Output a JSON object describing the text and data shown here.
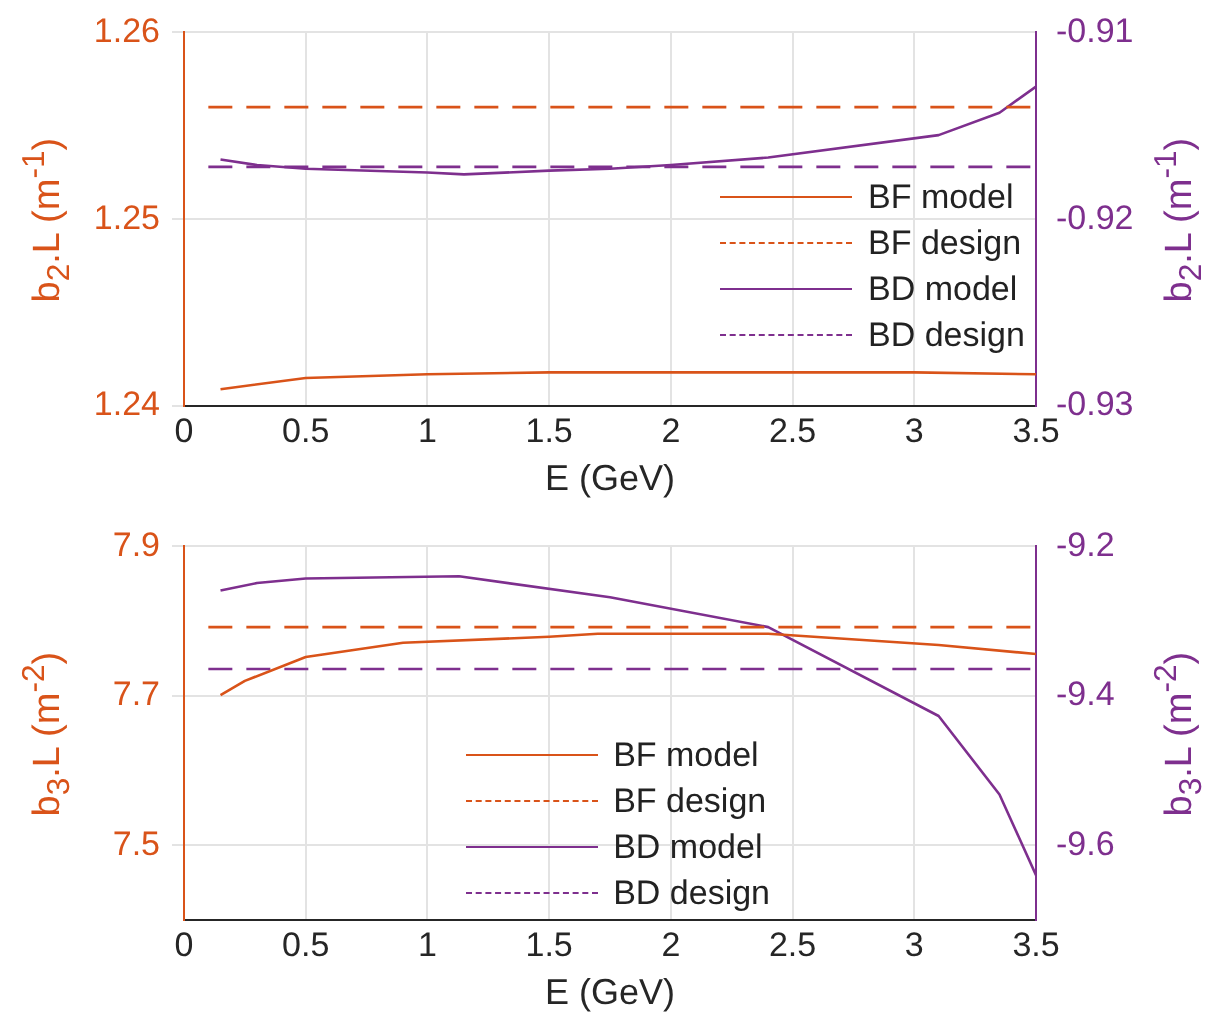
{
  "chart_data": [
    {
      "type": "line",
      "xlabel": "E (GeV)",
      "ylabel": "b$_{2}$.L (m$^{-1}$)",
      "y2label": "b$_{2}$.L (m$^{-1}$)",
      "xlim": [
        0,
        3.5
      ],
      "xticks": [
        0,
        0.5,
        1,
        1.5,
        2,
        2.5,
        3,
        3.5
      ],
      "ylim": [
        1.24,
        1.26
      ],
      "yticks": [
        1.24,
        1.25,
        1.26
      ],
      "y2lim": [
        -0.93,
        -0.91
      ],
      "y2ticks": [
        -0.93,
        -0.92,
        -0.91
      ],
      "grid": true,
      "legend": "right",
      "marker": "none",
      "series": [
        {
          "name": "BF model",
          "color": "#d95319",
          "line_style": "solid",
          "x": [
            0.15,
            0.5,
            1.0,
            1.5,
            2.0,
            2.5,
            3.0,
            3.5
          ],
          "values": [
            1.2409,
            1.2415,
            1.2417,
            1.2418,
            1.2418,
            1.2418,
            1.2418,
            1.2417
          ]
        },
        {
          "name": "BF design",
          "color": "#d95319",
          "line_style": "dashed",
          "x": [
            0.1,
            3.5
          ],
          "values": [
            1.256,
            1.256
          ]
        },
        {
          "name": "BD model",
          "color": "#7e2f8e",
          "line_style": "solid",
          "axis": "y2",
          "x": [
            0.15,
            0.3,
            0.5,
            1.0,
            1.15,
            1.5,
            1.75,
            2.0,
            2.4,
            3.1,
            3.35,
            3.5
          ],
          "values": [
            -0.9168,
            -0.9171,
            -0.9173,
            -0.9175,
            -0.9176,
            -0.9174,
            -0.9173,
            -0.9171,
            -0.9167,
            -0.9155,
            -0.9143,
            -0.9129
          ]
        },
        {
          "name": "BD design",
          "color": "#7e2f8e",
          "line_style": "dashed",
          "axis": "y2",
          "x": [
            0.1,
            3.5
          ],
          "values": [
            -0.9172,
            -0.9172
          ]
        }
      ]
    },
    {
      "type": "line",
      "xlabel": "E (GeV)",
      "ylabel": "b$_{3}$.L (m$^{-2}$)",
      "y2label": "b$_{3}$.L (m$^{-2}$)",
      "xlim": [
        0,
        3.5
      ],
      "xticks": [
        0,
        0.5,
        1,
        1.5,
        2,
        2.5,
        3,
        3.5
      ],
      "ylim": [
        7.4,
        7.9
      ],
      "yticks": [
        7.5,
        7.7,
        7.9
      ],
      "y2lim": [
        -9.7,
        -9.2
      ],
      "y2ticks": [
        -9.6,
        -9.4,
        -9.2
      ],
      "grid": true,
      "legend": "bottom",
      "marker": "none",
      "series": [
        {
          "name": "BF model",
          "color": "#d95319",
          "line_style": "solid",
          "x": [
            0.15,
            0.25,
            0.5,
            0.9,
            1.5,
            1.7,
            2.4,
            3.1,
            3.5
          ],
          "values": [
            7.701,
            7.72,
            7.752,
            7.771,
            7.779,
            7.783,
            7.783,
            7.768,
            7.756
          ]
        },
        {
          "name": "BF design",
          "color": "#d95319",
          "line_style": "dashed",
          "x": [
            0.1,
            3.5
          ],
          "values": [
            7.792,
            7.792
          ]
        },
        {
          "name": "BD model",
          "color": "#7e2f8e",
          "line_style": "solid",
          "axis": "y2",
          "x": [
            0.15,
            0.3,
            0.5,
            1.13,
            1.75,
            2.4,
            3.1,
            3.35,
            3.5
          ],
          "values": [
            -9.259,
            -9.249,
            -9.243,
            -9.24,
            -9.268,
            -9.308,
            -9.427,
            -9.532,
            -9.64
          ]
        },
        {
          "name": "BD design",
          "color": "#7e2f8e",
          "line_style": "dashed",
          "axis": "y2",
          "x": [
            0.1,
            3.5
          ],
          "values": [
            -9.364,
            -9.364
          ]
        }
      ]
    }
  ]
}
